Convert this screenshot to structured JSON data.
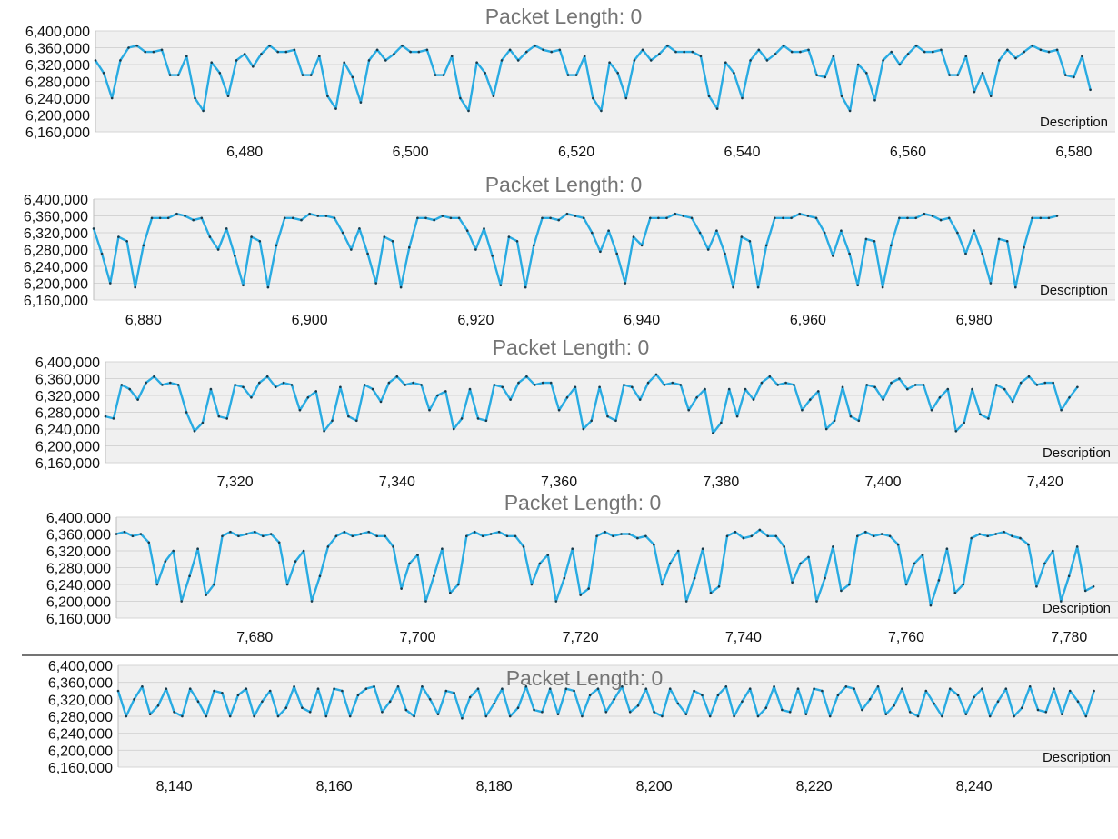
{
  "chart_data": [
    {
      "type": "line",
      "title": "Packet Length: 0",
      "description_label": "Description",
      "ylim": [
        6160000,
        6400000
      ],
      "yticks": [
        "6,400,000",
        "6,360,000",
        "6,320,000",
        "6,280,000",
        "6,240,000",
        "6,200,000",
        "6,160,000"
      ],
      "xlim": [
        6462,
        6585
      ],
      "xticks": [
        "6,480",
        "6,500",
        "6,520",
        "6,540",
        "6,560",
        "6,580"
      ],
      "grid": true,
      "series": [
        {
          "color": "#29abe2",
          "x_start": 6462,
          "x_step": 1,
          "values": [
            6330000,
            6300000,
            6240000,
            6330000,
            6360000,
            6365000,
            6350000,
            6350000,
            6355000,
            6295000,
            6295000,
            6340000,
            6240000,
            6210000,
            6325000,
            6300000,
            6245000,
            6330000,
            6345000,
            6315000,
            6345000,
            6365000,
            6350000,
            6350000,
            6355000,
            6295000,
            6295000,
            6340000,
            6245000,
            6215000,
            6325000,
            6290000,
            6230000,
            6330000,
            6355000,
            6330000,
            6345000,
            6365000,
            6350000,
            6350000,
            6355000,
            6295000,
            6295000,
            6340000,
            6240000,
            6210000,
            6325000,
            6300000,
            6245000,
            6330000,
            6355000,
            6330000,
            6350000,
            6365000,
            6355000,
            6350000,
            6355000,
            6295000,
            6295000,
            6340000,
            6240000,
            6210000,
            6325000,
            6300000,
            6240000,
            6330000,
            6355000,
            6330000,
            6345000,
            6365000,
            6350000,
            6350000,
            6350000,
            6340000,
            6245000,
            6215000,
            6325000,
            6300000,
            6240000,
            6330000,
            6355000,
            6330000,
            6345000,
            6365000,
            6350000,
            6350000,
            6355000,
            6295000,
            6290000,
            6340000,
            6245000,
            6210000,
            6320000,
            6300000,
            6235000,
            6330000,
            6350000,
            6320000,
            6345000,
            6365000,
            6350000,
            6350000,
            6355000,
            6295000,
            6295000,
            6340000,
            6255000,
            6300000,
            6245000,
            6330000,
            6355000,
            6335000,
            6350000,
            6365000,
            6355000,
            6350000,
            6355000,
            6295000,
            6290000,
            6340000,
            6260000
          ]
        }
      ]
    },
    {
      "type": "line",
      "title": "Packet Length: 0",
      "description_label": "Description",
      "ylim": [
        6160000,
        6400000
      ],
      "yticks": [
        "6,400,000",
        "6,360,000",
        "6,320,000",
        "6,280,000",
        "6,240,000",
        "6,200,000",
        "6,160,000"
      ],
      "xlim": [
        6874,
        6997
      ],
      "xticks": [
        "6,880",
        "6,900",
        "6,920",
        "6,940",
        "6,960",
        "6,980"
      ],
      "grid": true,
      "series": [
        {
          "color": "#29abe2",
          "x_start": 6874,
          "x_step": 1,
          "values": [
            6330000,
            6270000,
            6200000,
            6310000,
            6300000,
            6190000,
            6290000,
            6355000,
            6355000,
            6355000,
            6365000,
            6360000,
            6350000,
            6355000,
            6310000,
            6280000,
            6330000,
            6265000,
            6195000,
            6310000,
            6300000,
            6190000,
            6290000,
            6355000,
            6355000,
            6350000,
            6365000,
            6360000,
            6360000,
            6355000,
            6320000,
            6280000,
            6330000,
            6270000,
            6200000,
            6310000,
            6300000,
            6190000,
            6285000,
            6355000,
            6355000,
            6350000,
            6360000,
            6355000,
            6355000,
            6325000,
            6280000,
            6330000,
            6265000,
            6195000,
            6310000,
            6300000,
            6190000,
            6290000,
            6355000,
            6355000,
            6350000,
            6365000,
            6360000,
            6355000,
            6320000,
            6275000,
            6325000,
            6270000,
            6200000,
            6310000,
            6290000,
            6355000,
            6355000,
            6355000,
            6365000,
            6360000,
            6355000,
            6320000,
            6280000,
            6325000,
            6270000,
            6190000,
            6310000,
            6300000,
            6190000,
            6290000,
            6355000,
            6355000,
            6355000,
            6365000,
            6360000,
            6355000,
            6320000,
            6265000,
            6325000,
            6270000,
            6195000,
            6305000,
            6300000,
            6190000,
            6290000,
            6355000,
            6355000,
            6355000,
            6365000,
            6360000,
            6350000,
            6355000,
            6320000,
            6270000,
            6325000,
            6270000,
            6200000,
            6305000,
            6300000,
            6190000,
            6285000,
            6355000,
            6355000,
            6355000,
            6360000
          ]
        }
      ]
    },
    {
      "type": "line",
      "title": "Packet Length: 0",
      "description_label": "Description",
      "ylim": [
        6160000,
        6400000
      ],
      "yticks": [
        "6,400,000",
        "6,360,000",
        "6,320,000",
        "6,280,000",
        "6,240,000",
        "6,200,000",
        "6,160,000"
      ],
      "xlim": [
        7304,
        7429
      ],
      "xticks": [
        "7,320",
        "7,340",
        "7,360",
        "7,380",
        "7,400",
        "7,420"
      ],
      "grid": true,
      "series": [
        {
          "color": "#29abe2",
          "x_start": 7304,
          "x_step": 1,
          "values": [
            6270000,
            6265000,
            6345000,
            6335000,
            6310000,
            6350000,
            6365000,
            6345000,
            6350000,
            6345000,
            6280000,
            6235000,
            6255000,
            6335000,
            6270000,
            6265000,
            6345000,
            6340000,
            6315000,
            6350000,
            6365000,
            6340000,
            6350000,
            6345000,
            6285000,
            6315000,
            6330000,
            6235000,
            6260000,
            6340000,
            6270000,
            6260000,
            6345000,
            6335000,
            6305000,
            6350000,
            6365000,
            6345000,
            6350000,
            6345000,
            6285000,
            6320000,
            6330000,
            6240000,
            6265000,
            6335000,
            6265000,
            6260000,
            6345000,
            6340000,
            6310000,
            6350000,
            6365000,
            6345000,
            6350000,
            6350000,
            6285000,
            6315000,
            6340000,
            6240000,
            6260000,
            6340000,
            6270000,
            6260000,
            6345000,
            6340000,
            6310000,
            6350000,
            6370000,
            6345000,
            6350000,
            6345000,
            6285000,
            6315000,
            6335000,
            6230000,
            6255000,
            6335000,
            6270000,
            6335000,
            6310000,
            6350000,
            6365000,
            6345000,
            6350000,
            6345000,
            6285000,
            6310000,
            6330000,
            6240000,
            6260000,
            6340000,
            6270000,
            6260000,
            6345000,
            6340000,
            6310000,
            6350000,
            6360000,
            6335000,
            6345000,
            6345000,
            6285000,
            6315000,
            6335000,
            6235000,
            6255000,
            6335000,
            6275000,
            6265000,
            6345000,
            6335000,
            6305000,
            6350000,
            6365000,
            6345000,
            6350000,
            6350000,
            6285000,
            6315000,
            6340000
          ]
        }
      ]
    },
    {
      "type": "line",
      "title": "Packet Length: 0",
      "description_label": "Description",
      "ylim": [
        6160000,
        6400000
      ],
      "yticks": [
        "6,400,000",
        "6,360,000",
        "6,320,000",
        "6,280,000",
        "6,240,000",
        "6,200,000",
        "6,160,000"
      ],
      "xlim": [
        7663,
        7786
      ],
      "xticks": [
        "7,680",
        "7,700",
        "7,720",
        "7,740",
        "7,760",
        "7,780"
      ],
      "grid": true,
      "series": [
        {
          "color": "#29abe2",
          "x_start": 7663,
          "x_step": 1,
          "values": [
            6360000,
            6365000,
            6355000,
            6360000,
            6340000,
            6240000,
            6295000,
            6320000,
            6200000,
            6260000,
            6325000,
            6215000,
            6240000,
            6355000,
            6365000,
            6355000,
            6360000,
            6365000,
            6355000,
            6360000,
            6340000,
            6240000,
            6295000,
            6320000,
            6200000,
            6260000,
            6330000,
            6355000,
            6365000,
            6355000,
            6360000,
            6365000,
            6355000,
            6355000,
            6330000,
            6230000,
            6290000,
            6310000,
            6200000,
            6260000,
            6325000,
            6220000,
            6240000,
            6355000,
            6365000,
            6355000,
            6360000,
            6365000,
            6355000,
            6355000,
            6330000,
            6240000,
            6290000,
            6310000,
            6200000,
            6255000,
            6325000,
            6215000,
            6230000,
            6355000,
            6365000,
            6355000,
            6360000,
            6360000,
            6350000,
            6355000,
            6335000,
            6240000,
            6290000,
            6320000,
            6200000,
            6255000,
            6325000,
            6220000,
            6235000,
            6355000,
            6365000,
            6350000,
            6355000,
            6370000,
            6355000,
            6355000,
            6330000,
            6245000,
            6290000,
            6305000,
            6200000,
            6255000,
            6330000,
            6225000,
            6240000,
            6355000,
            6365000,
            6355000,
            6360000,
            6355000,
            6335000,
            6240000,
            6290000,
            6310000,
            6190000,
            6250000,
            6325000,
            6220000,
            6240000,
            6350000,
            6360000,
            6355000,
            6360000,
            6365000,
            6355000,
            6350000,
            6335000,
            6235000,
            6290000,
            6320000,
            6200000,
            6260000,
            6330000,
            6225000,
            6235000
          ]
        }
      ]
    },
    {
      "type": "line",
      "title": "Packet Length: 0",
      "description_label": "Description",
      "ylim": [
        6160000,
        6400000
      ],
      "yticks": [
        "6,400,000",
        "6,360,000",
        "6,320,000",
        "6,280,000",
        "6,240,000",
        "6,200,000",
        "6,160,000"
      ],
      "xlim": [
        8133,
        8258
      ],
      "xticks": [
        "8,140",
        "8,160",
        "8,180",
        "8,200",
        "8,220",
        "8,240"
      ],
      "grid": true,
      "series": [
        {
          "color": "#29abe2",
          "x_start": 8133,
          "x_step": 1,
          "values": [
            6340000,
            6280000,
            6320000,
            6350000,
            6285000,
            6305000,
            6345000,
            6290000,
            6280000,
            6345000,
            6315000,
            6280000,
            6340000,
            6335000,
            6280000,
            6330000,
            6345000,
            6280000,
            6315000,
            6340000,
            6280000,
            6300000,
            6350000,
            6300000,
            6290000,
            6345000,
            6280000,
            6345000,
            6340000,
            6280000,
            6330000,
            6345000,
            6350000,
            6290000,
            6315000,
            6350000,
            6295000,
            6280000,
            6350000,
            6320000,
            6285000,
            6340000,
            6335000,
            6275000,
            6325000,
            6345000,
            6280000,
            6310000,
            6345000,
            6280000,
            6300000,
            6350000,
            6295000,
            6290000,
            6345000,
            6285000,
            6345000,
            6340000,
            6280000,
            6330000,
            6345000,
            6290000,
            6320000,
            6350000,
            6290000,
            6305000,
            6345000,
            6290000,
            6280000,
            6345000,
            6310000,
            6285000,
            6340000,
            6330000,
            6280000,
            6330000,
            6350000,
            6280000,
            6315000,
            6345000,
            6280000,
            6300000,
            6350000,
            6295000,
            6290000,
            6345000,
            6285000,
            6345000,
            6340000,
            6280000,
            6330000,
            6350000,
            6345000,
            6295000,
            6320000,
            6350000,
            6285000,
            6305000,
            6345000,
            6290000,
            6280000,
            6340000,
            6310000,
            6280000,
            6345000,
            6330000,
            6285000,
            6325000,
            6345000,
            6280000,
            6315000,
            6345000,
            6280000,
            6300000,
            6350000,
            6295000,
            6290000,
            6345000,
            6285000,
            6340000,
            6315000,
            6280000,
            6340000
          ]
        }
      ]
    }
  ]
}
